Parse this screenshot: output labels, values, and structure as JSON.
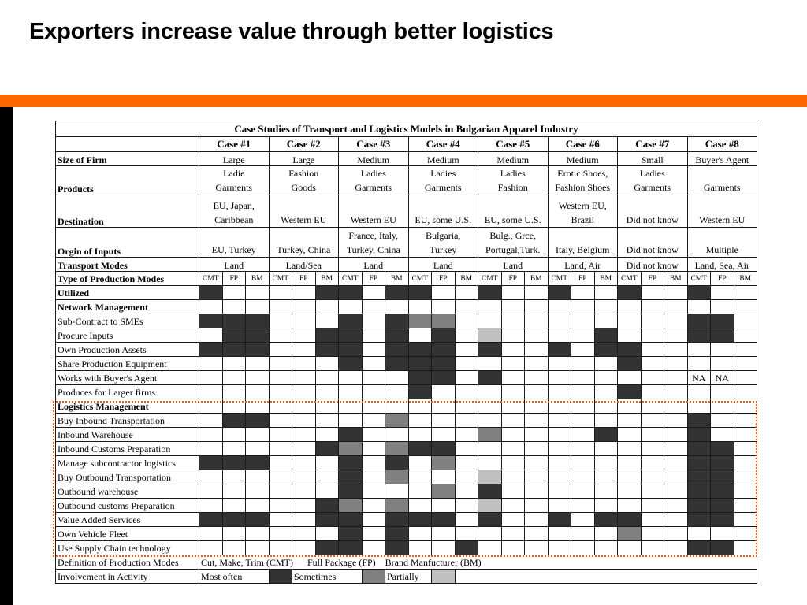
{
  "slide": {
    "title": "Exporters increase value through better logistics",
    "accent_color": "#ff6600"
  },
  "table": {
    "title": "Case Studies of Transport and Logistics Models in Bulgarian Apparel Industry",
    "cases": [
      "Case #1",
      "Case #2",
      "Case #3",
      "Case #4",
      "Case #5",
      "Case #6",
      "Case #7",
      "Case #8"
    ],
    "info_rows": [
      {
        "label": "Size of Firm",
        "values": [
          [
            "Large"
          ],
          [
            "Large"
          ],
          [
            "Medium"
          ],
          [
            "Medium"
          ],
          [
            "Medium"
          ],
          [
            "Medium"
          ],
          [
            "Small"
          ],
          [
            "Buyer's Agent"
          ]
        ]
      },
      {
        "label": "Products",
        "values": [
          [
            "Ladie",
            "Garments"
          ],
          [
            "Fashion",
            "Goods"
          ],
          [
            "Ladies",
            "Garments"
          ],
          [
            "Ladies",
            "Garments"
          ],
          [
            "Ladies",
            "Fashion"
          ],
          [
            "Erotic Shoes,",
            "Fashion Shoes"
          ],
          [
            "Ladies",
            "Garments"
          ],
          [
            "",
            "Garments"
          ]
        ]
      },
      {
        "label": "Destination",
        "values": [
          [
            "EU, Japan,",
            "Caribbean"
          ],
          [
            "",
            "Western EU"
          ],
          [
            "",
            "Western EU"
          ],
          [
            "",
            "EU, some U.S."
          ],
          [
            "",
            "EU, some U.S."
          ],
          [
            "Western EU,",
            "Brazil"
          ],
          [
            "",
            "Did not know"
          ],
          [
            "",
            "Western EU"
          ]
        ]
      },
      {
        "label": "Orgin of Inputs",
        "values": [
          [
            "",
            "EU, Turkey"
          ],
          [
            "",
            "Turkey, China"
          ],
          [
            "France, Italy,",
            "Turkey, China"
          ],
          [
            "Bulgaria,",
            "Turkey"
          ],
          [
            "Bulg., Grce,",
            "Portugal,Turk."
          ],
          [
            "",
            "Italy, Belgium"
          ],
          [
            "",
            "Did not know"
          ],
          [
            "",
            "Multiple"
          ]
        ]
      },
      {
        "label": "Transport Modes",
        "values": [
          [
            "Land"
          ],
          [
            "Land/Sea"
          ],
          [
            "Land"
          ],
          [
            "Land"
          ],
          [
            "Land"
          ],
          [
            "Land, Air"
          ],
          [
            "Did not know"
          ],
          [
            "Land, Sea, Air"
          ]
        ]
      }
    ],
    "production_modes": {
      "label_line1": "Type of Production Modes",
      "label_line2": "Utilized",
      "sub": [
        "CMT",
        "FP",
        "BM"
      ],
      "marks": "100001101100100100100100"
    },
    "network": {
      "heading": "Network Management",
      "rows": [
        {
          "label": "Sub-Contract to SMEs",
          "marks": "111000101220000000000110"
        },
        {
          "label": "Procure Inputs",
          "marks": "011001101010300001000110"
        },
        {
          "label": "Own Production Assets",
          "marks": "111001101110100101100000"
        },
        {
          "label": "Share Production Equipment",
          "marks": "000000101110000000100000"
        },
        {
          "label": "Works with Buyer's Agent",
          "marks": "000000000110100000000000"
        },
        {
          "label": "Produces for Larger firms",
          "marks": "000000000100000000100000"
        }
      ],
      "na_cells": [
        {
          "index": 21,
          "text": "NA"
        },
        {
          "index": 22,
          "text": "NA"
        }
      ]
    },
    "logistics": {
      "heading": "Logistics Management",
      "rows": [
        {
          "label": "Buy Inbound Transportation",
          "marks": "011000002000000000000100"
        },
        {
          "label": "Inbound Warehouse",
          "marks": "000000100000200001000100"
        },
        {
          "label": "Inbound Customs Preparation",
          "marks": "000001202110000000000110"
        },
        {
          "label": "Manage subcontractor logistics",
          "marks": "111000101020000000000110"
        },
        {
          "label": "Buy Outbound Transportation",
          "marks": "000000102000300000000110"
        },
        {
          "label": "Outbound warehouse",
          "marks": "000000100020100000000110"
        },
        {
          "label": "Outbound customs Preparation",
          "marks": "000001202000300000000110"
        },
        {
          "label": "Value Added Services",
          "marks": "111001101110100101100110"
        },
        {
          "label": "Own Vehicle Fleet",
          "marks": "000000101000000000200000"
        },
        {
          "label": "Use Supply Chain technology",
          "marks": "000001101001000000000110"
        }
      ]
    },
    "definition": {
      "label": "Definition of Production Modes",
      "text": "Cut, Make, Trim (CMT)      Full Package (FP)    Brand Manfucturer (BM)"
    },
    "legend": {
      "label": "Involvement in Activity",
      "most_often": "Most often",
      "sometimes": "Sometimes",
      "partially": "Partially"
    },
    "colors": {
      "most_often": "#333333",
      "sometimes": "#808080",
      "partially": "#c0c0c0"
    }
  }
}
